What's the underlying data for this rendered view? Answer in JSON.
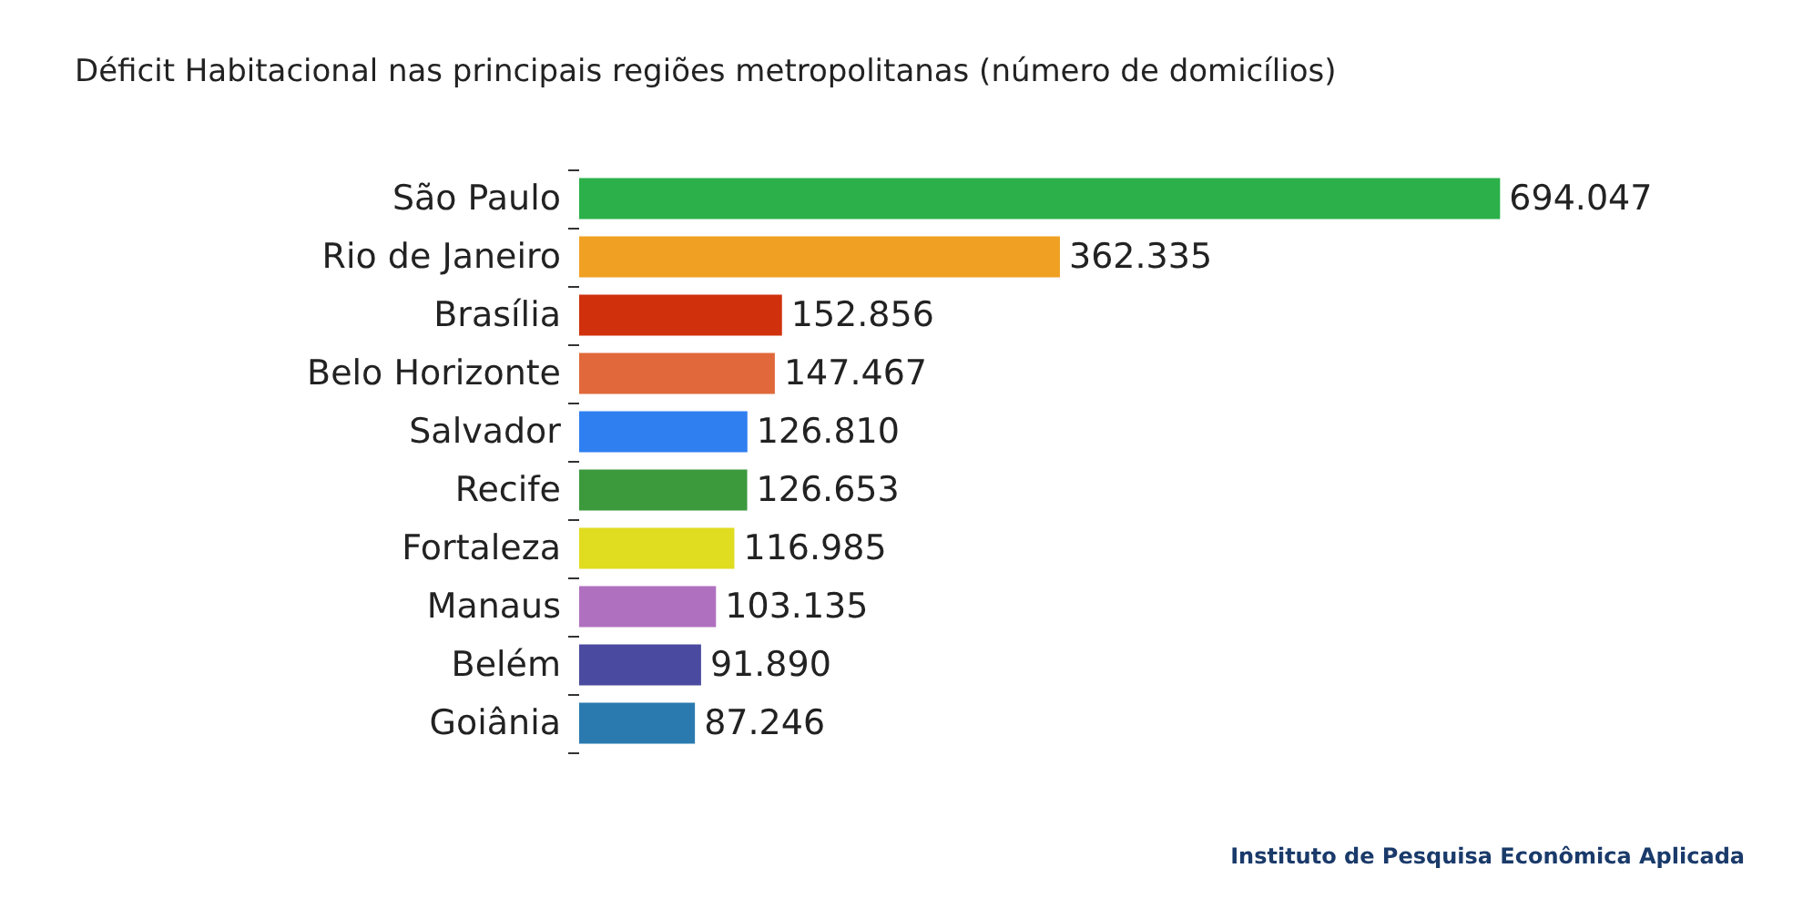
{
  "chart_data": {
    "type": "bar",
    "orientation": "horizontal",
    "title": "Déficit Habitacional nas principais regiões metropolitanas (número de domicílios)",
    "categories": [
      "São Paulo",
      "Rio de Janeiro",
      "Brasília",
      "Belo Horizonte",
      "Salvador",
      "Recife",
      "Fortaleza",
      "Manaus",
      "Belém",
      "Goiânia"
    ],
    "values": [
      694047,
      362335,
      152856,
      147467,
      126810,
      126653,
      116985,
      103135,
      91890,
      87246
    ],
    "colors": [
      "#2bb04a",
      "#f0a022",
      "#d0300c",
      "#e0683a",
      "#2f7ff0",
      "#3c9a3c",
      "#e0dc20",
      "#b070c0",
      "#4a4aa0",
      "#2a7ab0"
    ],
    "value_labels": [
      "694.047",
      "362.335",
      "152.856",
      "147.467",
      "126.810",
      "126.653",
      "116.985",
      "103.135",
      "91.890",
      "87.246"
    ],
    "annotations": [
      "Instituto de Pesquisa Econômica Aplicada"
    ]
  }
}
